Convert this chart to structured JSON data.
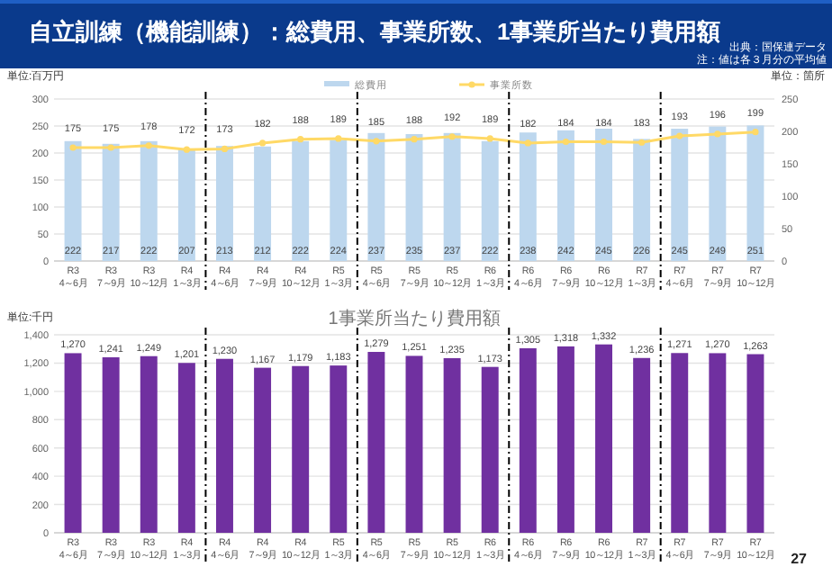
{
  "chart_data": [
    {
      "type": "bar",
      "title": "自立訓練（機能訓練）：総費用、事業所数、1事業所当たり費用額",
      "annotations": [
        "出典：国保連データ",
        "注：値は各３月分の平均値"
      ],
      "ylabel": "単位:百万円",
      "y2label": "単位：箇所",
      "categories": [
        "R3\n4～6月",
        "R3\n7～9月",
        "R3\n10～12月",
        "R4\n1～3月",
        "R4\n4～6月",
        "R4\n7～9月",
        "R4\n10～12月",
        "R5\n1～3月",
        "R5\n4～6月",
        "R5\n7～9月",
        "R5\n10～12月",
        "R6\n1～3月",
        "R6\n4～6月",
        "R6\n7～9月",
        "R6\n10～12月",
        "R7\n1～3月",
        "R7\n4～6月",
        "R7\n7～9月",
        "R7\n10～12月"
      ],
      "series": [
        {
          "name": "総費用",
          "type": "bar",
          "color": "#bdd7ee",
          "values": [
            222,
            217,
            222,
            207,
            213,
            212,
            222,
            224,
            237,
            235,
            237,
            222,
            238,
            242,
            245,
            226,
            245,
            249,
            251
          ]
        },
        {
          "name": "事業所数",
          "type": "line",
          "axis": "y2",
          "color": "#ffd966",
          "marker": "circle",
          "values": [
            175,
            175,
            178,
            172,
            173,
            182,
            188,
            189,
            185,
            188,
            192,
            189,
            182,
            184,
            184,
            183,
            193,
            196,
            199
          ]
        }
      ],
      "ylim": [
        0,
        300
      ],
      "yticks": [
        0,
        50,
        100,
        150,
        200,
        250,
        300
      ],
      "y2lim": [
        0,
        250
      ],
      "y2ticks": [
        0,
        50,
        100,
        150,
        200,
        250
      ],
      "grid": "y",
      "legend": "top",
      "data_labels": true
    },
    {
      "type": "bar",
      "title": "1事業所当たり費用額",
      "ylabel": "単位:千円",
      "annotations": [
        "27"
      ],
      "categories": [
        "R3\n4～6月",
        "R3\n7～9月",
        "R3\n10～12月",
        "R4\n1～3月",
        "R4\n4～6月",
        "R4\n7～9月",
        "R4\n10～12月",
        "R5\n1～3月",
        "R5\n4～6月",
        "R5\n7～9月",
        "R5\n10～12月",
        "R6\n1～3月",
        "R6\n4～6月",
        "R6\n7～9月",
        "R6\n10～12月",
        "R7\n1～3月",
        "R7\n4～6月",
        "R7\n7～9月",
        "R7\n10～12月"
      ],
      "series": [
        {
          "color": "#7030a0",
          "values": [
            1270,
            1241,
            1249,
            1201,
            1230,
            1167,
            1179,
            1183,
            1279,
            1251,
            1235,
            1173,
            1305,
            1318,
            1332,
            1236,
            1271,
            1270,
            1263
          ],
          "value_labels": [
            "1,270",
            "1,241",
            "1,249",
            "1,201",
            "1,230",
            "1,167",
            "1,179",
            "1,183",
            "1,279",
            "1,251",
            "1,235",
            "1,173",
            "1,305",
            "1,318",
            "1,332",
            "1,236",
            "1,271",
            "1,270",
            "1,263"
          ]
        }
      ],
      "ylim": [
        0,
        1400
      ],
      "yticks": [
        0,
        200,
        400,
        600,
        800,
        {
          "value": 1000,
          "label": "1,000"
        },
        {
          "value": 1200,
          "label": "1,200"
        },
        {
          "value": 1400,
          "label": "1,400"
        }
      ],
      "grid": "y"
    }
  ]
}
